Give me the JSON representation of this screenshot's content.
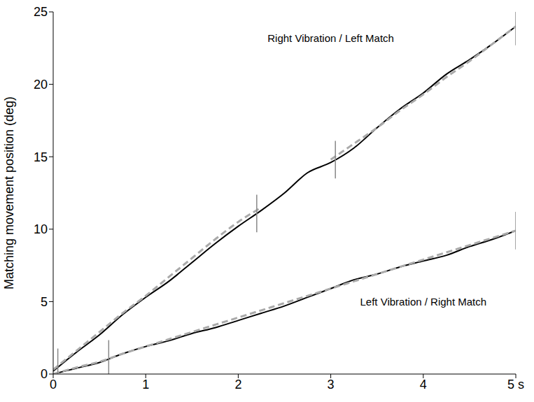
{
  "chart_data": {
    "type": "line",
    "y_label": "Matching movement position (deg)",
    "x": [
      0,
      0.25,
      0.5,
      0.75,
      1,
      1.25,
      1.5,
      1.75,
      2,
      2.25,
      2.5,
      2.75,
      3,
      3.25,
      3.5,
      3.75,
      4,
      4.25,
      4.5,
      4.75,
      5
    ],
    "xlim": [
      0,
      5
    ],
    "xticks": [
      0,
      1,
      2,
      3,
      4,
      {
        "value": 5,
        "label": "5 s"
      }
    ],
    "ylim": [
      0,
      25
    ],
    "yticks": [
      0,
      5,
      10,
      15,
      20,
      25
    ],
    "grid": false,
    "series": [
      {
        "name": "Right Vibration / Left Match",
        "color": "#000000",
        "line_style": "solid",
        "values": [
          0.2,
          1.5,
          2.7,
          4.1,
          5.3,
          6.4,
          7.7,
          9.0,
          10.2,
          11.3,
          12.5,
          13.9,
          14.6,
          15.6,
          17.0,
          18.3,
          19.4,
          20.7,
          21.7,
          22.8,
          24.0
        ],
        "breaks": [
          0.05,
          2.2,
          3.05,
          5
        ]
      },
      {
        "name": "Left Vibration / Right Match",
        "color": "#000000",
        "line_style": "solid",
        "values": [
          0.0,
          0.4,
          0.8,
          1.4,
          1.9,
          2.3,
          2.8,
          3.2,
          3.7,
          4.2,
          4.7,
          5.3,
          5.9,
          6.5,
          6.9,
          7.4,
          7.8,
          8.2,
          8.8,
          9.3,
          9.9
        ],
        "breaks": [
          0.6,
          5
        ]
      },
      {
        "color": "#aaaaaa",
        "line_style": "dashed",
        "values": [
          0.3,
          1.6,
          2.9,
          4.2,
          5.4,
          6.7,
          8.0,
          9.3,
          10.5,
          11.5,
          null,
          null,
          14.8,
          15.9,
          17.0,
          18.2,
          19.3,
          20.5,
          21.6,
          22.8,
          24.0
        ]
      },
      {
        "color": "#aaaaaa",
        "line_style": "dashed",
        "values": [
          0.0,
          0.45,
          0.85,
          1.4,
          1.9,
          2.4,
          2.9,
          3.4,
          3.9,
          4.4,
          4.9,
          5.4,
          5.9,
          6.4,
          6.9,
          7.4,
          7.9,
          8.4,
          8.9,
          9.4,
          9.9
        ]
      }
    ]
  }
}
